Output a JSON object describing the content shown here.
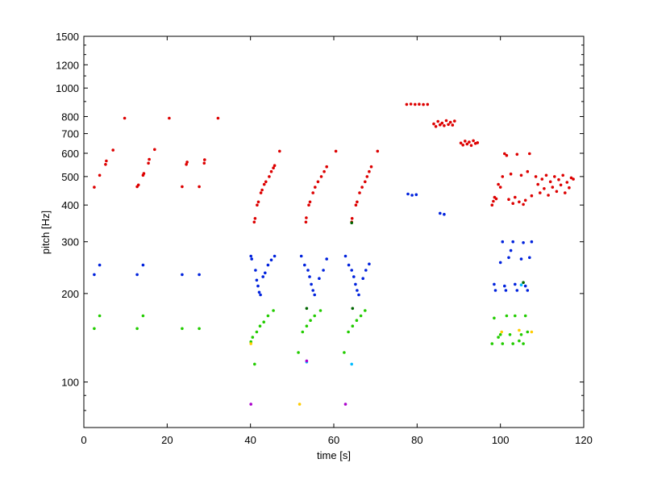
{
  "chart_data": {
    "type": "scatter",
    "title": "",
    "xlabel": "time [s]",
    "ylabel": "pitch [Hz]",
    "xlim": [
      0,
      120
    ],
    "ylim": [
      70,
      1500
    ],
    "yscale": "log",
    "grid": false,
    "x_ticks": [
      0,
      20,
      40,
      60,
      80,
      100,
      120
    ],
    "y_ticks": [
      100,
      200,
      300,
      400,
      500,
      600,
      700,
      800,
      1000,
      1200,
      1500
    ],
    "series": [
      {
        "color": "#dd0000",
        "points": [
          [
            2.5,
            460
          ],
          [
            3.8,
            505
          ],
          [
            5.2,
            550
          ],
          [
            5.4,
            565
          ],
          [
            7,
            615
          ],
          [
            9.8,
            790
          ],
          [
            12.8,
            462
          ],
          [
            13.1,
            468
          ],
          [
            14.2,
            505
          ],
          [
            14.4,
            512
          ],
          [
            15.5,
            555
          ],
          [
            15.7,
            572
          ],
          [
            17,
            618
          ],
          [
            20.5,
            790
          ],
          [
            23.6,
            462
          ],
          [
            24.6,
            550
          ],
          [
            24.8,
            560
          ],
          [
            27.7,
            462
          ],
          [
            28.9,
            555
          ],
          [
            29,
            570
          ],
          [
            32.2,
            790
          ],
          [
            40.9,
            350
          ],
          [
            41.1,
            360
          ],
          [
            41.6,
            400
          ],
          [
            41.9,
            410
          ],
          [
            42.5,
            440
          ],
          [
            42.8,
            450
          ],
          [
            43.3,
            470
          ],
          [
            43.7,
            480
          ],
          [
            44.5,
            500
          ],
          [
            45,
            520
          ],
          [
            45.5,
            535
          ],
          [
            45.8,
            545
          ],
          [
            47,
            610
          ],
          [
            53.3,
            350
          ],
          [
            53.4,
            362
          ],
          [
            54,
            400
          ],
          [
            54.3,
            410
          ],
          [
            55,
            440
          ],
          [
            55.5,
            460
          ],
          [
            56.2,
            480
          ],
          [
            57,
            500
          ],
          [
            57.7,
            520
          ],
          [
            58.3,
            540
          ],
          [
            60.5,
            610
          ],
          [
            64.3,
            350
          ],
          [
            64.4,
            360
          ],
          [
            65.3,
            400
          ],
          [
            65.6,
            410
          ],
          [
            66.2,
            440
          ],
          [
            66.8,
            460
          ],
          [
            67.5,
            480
          ],
          [
            68,
            500
          ],
          [
            68.5,
            520
          ],
          [
            69,
            540
          ],
          [
            70.5,
            610
          ],
          [
            77.5,
            880
          ],
          [
            78.5,
            882
          ],
          [
            79.5,
            880
          ],
          [
            80.5,
            881
          ],
          [
            81.5,
            879
          ],
          [
            82.5,
            880
          ],
          [
            84,
            755
          ],
          [
            84.5,
            740
          ],
          [
            85,
            770
          ],
          [
            85.5,
            750
          ],
          [
            86,
            760
          ],
          [
            86.5,
            745
          ],
          [
            87,
            775
          ],
          [
            87.5,
            752
          ],
          [
            88,
            765
          ],
          [
            88.5,
            748
          ],
          [
            89,
            772
          ],
          [
            90.5,
            650
          ],
          [
            91,
            640
          ],
          [
            91.5,
            660
          ],
          [
            92,
            645
          ],
          [
            92.5,
            655
          ],
          [
            93,
            638
          ],
          [
            93.5,
            662
          ],
          [
            94,
            648
          ],
          [
            94.5,
            652
          ],
          [
            98,
            400
          ],
          [
            98.3,
            412
          ],
          [
            98.6,
            425
          ],
          [
            99,
            420
          ],
          [
            99.5,
            470
          ],
          [
            100,
            460
          ],
          [
            100.5,
            500
          ],
          [
            101,
            598
          ],
          [
            101.5,
            590
          ],
          [
            102,
            418
          ],
          [
            102.5,
            510
          ],
          [
            103,
            405
          ],
          [
            103.5,
            425
          ],
          [
            104,
            595
          ],
          [
            104.5,
            410
          ],
          [
            105,
            505
          ],
          [
            105.5,
            402
          ],
          [
            106,
            415
          ],
          [
            106.5,
            520
          ],
          [
            107,
            598
          ],
          [
            107.5,
            430
          ],
          [
            108.5,
            500
          ],
          [
            109,
            470
          ],
          [
            109.5,
            440
          ],
          [
            110,
            490
          ],
          [
            110.5,
            455
          ],
          [
            111,
            505
          ],
          [
            111.5,
            432
          ],
          [
            112,
            480
          ],
          [
            112.5,
            460
          ],
          [
            113,
            500
          ],
          [
            113.5,
            445
          ],
          [
            114,
            488
          ],
          [
            114.5,
            468
          ],
          [
            115,
            505
          ],
          [
            115.5,
            440
          ],
          [
            116,
            478
          ],
          [
            116.5,
            458
          ],
          [
            117,
            495
          ],
          [
            117.5,
            490
          ]
        ]
      },
      {
        "color": "#0022dd",
        "points": [
          [
            2.5,
            232
          ],
          [
            3.8,
            250
          ],
          [
            12.8,
            232
          ],
          [
            14.2,
            250
          ],
          [
            23.6,
            232
          ],
          [
            27.7,
            232
          ],
          [
            40.1,
            268
          ],
          [
            40.3,
            262
          ],
          [
            41.2,
            240
          ],
          [
            41.5,
            222
          ],
          [
            41.8,
            212
          ],
          [
            42.1,
            202
          ],
          [
            42.4,
            198
          ],
          [
            43,
            228
          ],
          [
            43.5,
            235
          ],
          [
            44.2,
            250
          ],
          [
            45,
            260
          ],
          [
            45.8,
            268
          ],
          [
            52.2,
            268
          ],
          [
            53,
            250
          ],
          [
            53.8,
            240
          ],
          [
            54.2,
            228
          ],
          [
            54.6,
            215
          ],
          [
            55,
            205
          ],
          [
            55.4,
            198
          ],
          [
            56.5,
            225
          ],
          [
            57.5,
            240
          ],
          [
            58.3,
            262
          ],
          [
            62.8,
            268
          ],
          [
            63.6,
            250
          ],
          [
            64.3,
            240
          ],
          [
            64.8,
            228
          ],
          [
            65.2,
            215
          ],
          [
            65.6,
            205
          ],
          [
            66,
            198
          ],
          [
            67,
            225
          ],
          [
            67.7,
            240
          ],
          [
            68.5,
            252
          ],
          [
            77.8,
            436
          ],
          [
            78.8,
            432
          ],
          [
            79.8,
            434
          ],
          [
            85.5,
            375
          ],
          [
            86.5,
            372
          ],
          [
            98.5,
            215
          ],
          [
            98.8,
            205
          ],
          [
            100,
            255
          ],
          [
            100.5,
            300
          ],
          [
            101,
            212
          ],
          [
            101.3,
            205
          ],
          [
            102,
            265
          ],
          [
            102.5,
            280
          ],
          [
            103,
            300
          ],
          [
            103.5,
            215
          ],
          [
            104,
            205
          ],
          [
            105,
            262
          ],
          [
            105.5,
            298
          ],
          [
            106,
            212
          ],
          [
            106.5,
            205
          ],
          [
            107,
            265
          ],
          [
            107.5,
            300
          ]
        ]
      },
      {
        "color": "#22cc00",
        "points": [
          [
            2.5,
            152
          ],
          [
            3.8,
            168
          ],
          [
            12.8,
            152
          ],
          [
            14.2,
            168
          ],
          [
            23.6,
            152
          ],
          [
            27.7,
            152
          ],
          [
            40.1,
            137
          ],
          [
            40.5,
            142
          ],
          [
            41,
            115
          ],
          [
            41.5,
            148
          ],
          [
            42.3,
            155
          ],
          [
            43.2,
            160
          ],
          [
            44.2,
            168
          ],
          [
            45.5,
            175
          ],
          [
            51.5,
            126
          ],
          [
            52.5,
            148
          ],
          [
            53.5,
            155
          ],
          [
            54.4,
            162
          ],
          [
            55.4,
            168
          ],
          [
            56.8,
            175
          ],
          [
            62.5,
            126
          ],
          [
            63.5,
            148
          ],
          [
            64.5,
            155
          ],
          [
            65.5,
            162
          ],
          [
            66.5,
            168
          ],
          [
            67.5,
            175
          ],
          [
            98,
            135
          ],
          [
            98.5,
            165
          ],
          [
            99.5,
            142
          ],
          [
            100,
            145
          ],
          [
            100.5,
            135
          ],
          [
            101.5,
            168
          ],
          [
            102.3,
            145
          ],
          [
            103,
            135
          ],
          [
            103.5,
            168
          ],
          [
            104.5,
            138
          ],
          [
            105,
            145
          ],
          [
            105.5,
            135
          ],
          [
            106,
            168
          ],
          [
            106.5,
            148
          ]
        ]
      },
      {
        "color": "#ffcc00",
        "points": [
          [
            40.1,
            135
          ],
          [
            51.8,
            84
          ],
          [
            100.3,
            148
          ],
          [
            104.5,
            150
          ],
          [
            107.5,
            148
          ]
        ]
      },
      {
        "color": "#00bbff",
        "points": [
          [
            53.5,
            117
          ],
          [
            64.3,
            115
          ],
          [
            105,
            214
          ]
        ]
      },
      {
        "color": "#aa00cc",
        "points": [
          [
            40.1,
            84
          ],
          [
            53.5,
            118
          ],
          [
            62.8,
            84
          ]
        ]
      },
      {
        "color": "#006600",
        "points": [
          [
            53.5,
            178
          ],
          [
            64.3,
            348
          ],
          [
            64.5,
            178
          ],
          [
            105.5,
            218
          ]
        ]
      }
    ]
  }
}
